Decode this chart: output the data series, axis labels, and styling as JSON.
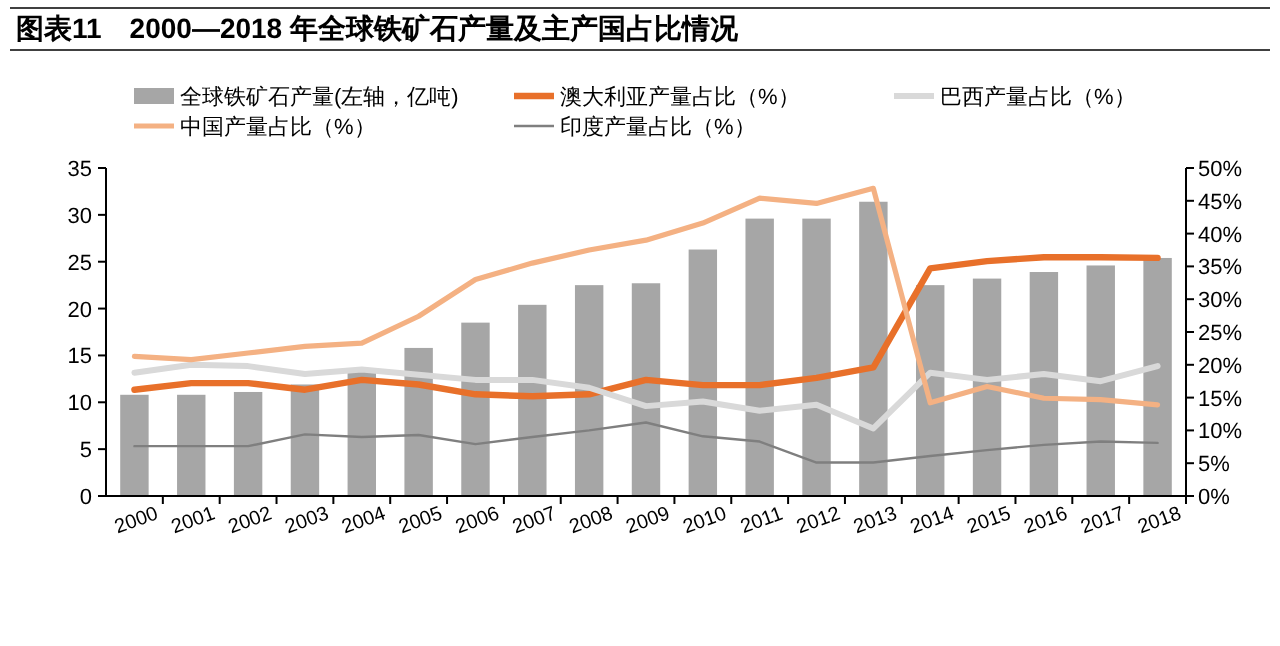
{
  "chart_data": {
    "type": "bar",
    "title": "图表11　2000—2018 年全球铁矿石产量及主产国占比情况",
    "categories": [
      "2000",
      "2001",
      "2002",
      "2003",
      "2004",
      "2005",
      "2006",
      "2007",
      "2008",
      "2009",
      "2010",
      "2011",
      "2012",
      "2013",
      "2014",
      "2015",
      "2016",
      "2017",
      "2018"
    ],
    "series": [
      {
        "name": "全球铁矿石产量(左轴，亿吨)",
        "color": "#a6a6a6",
        "values": [
          10.8,
          10.8,
          11.1,
          11.9,
          13.6,
          15.8,
          18.5,
          20.4,
          22.5,
          22.7,
          26.3,
          29.6,
          29.6,
          31.4,
          22.5,
          23.2,
          23.9,
          24.6,
          25.4
        ]
      },
      {
        "name": "澳大利亚产量占比（%）",
        "type": "line",
        "axis": "y2",
        "color": "#e8702a",
        "values": [
          16.2,
          17.2,
          17.2,
          16.2,
          17.7,
          17,
          15.5,
          15.2,
          15.5,
          17.7,
          16.9,
          16.9,
          18,
          19.6,
          34.7,
          35.8,
          36.4,
          36.4,
          36.3
        ]
      },
      {
        "name": "巴西产量占比（%）",
        "type": "line",
        "axis": "y2",
        "color": "#d9d9d9",
        "values": [
          18.8,
          20,
          19.8,
          18.6,
          19.3,
          18.5,
          17.7,
          17.7,
          16.5,
          13.7,
          14.4,
          13,
          13.9,
          10.3,
          18.8,
          17.7,
          18.6,
          17.5,
          19.8
        ]
      },
      {
        "name": "中国产量占比（%）",
        "type": "line",
        "axis": "y2",
        "color": "#f4b183",
        "values": [
          21.3,
          20.8,
          21.8,
          22.8,
          23.3,
          27.4,
          33,
          35.5,
          37.5,
          39,
          41.6,
          45.4,
          44.6,
          46.9,
          14.2,
          16.7,
          14.9,
          14.7,
          13.9
        ]
      },
      {
        "name": "印度产量占比（%）",
        "type": "line",
        "axis": "y2",
        "color": "#7f7f7f",
        "values": [
          7.6,
          7.6,
          7.6,
          9.4,
          9,
          9.3,
          7.9,
          9,
          10,
          11.2,
          9.1,
          8.3,
          5.1,
          5.1,
          6.1,
          7,
          7.8,
          8.3,
          8.1
        ]
      }
    ],
    "ylim": [
      0,
      35
    ],
    "yticks": [
      0,
      5,
      10,
      15,
      20,
      25,
      30,
      35
    ],
    "y2lim": [
      0,
      50
    ],
    "y2ticks": [
      {
        "value": 0,
        "label": "0%"
      },
      {
        "value": 5,
        "label": "5%"
      },
      {
        "value": 10,
        "label": "10%"
      },
      {
        "value": 15,
        "label": "15%"
      },
      {
        "value": 20,
        "label": "20%"
      },
      {
        "value": 25,
        "label": "25%"
      },
      {
        "value": 30,
        "label": "30%"
      },
      {
        "value": 35,
        "label": "35%"
      },
      {
        "value": 40,
        "label": "40%"
      },
      {
        "value": 45,
        "label": "45%"
      },
      {
        "value": 50,
        "label": "50%"
      }
    ],
    "legend": "top",
    "grid": false
  }
}
